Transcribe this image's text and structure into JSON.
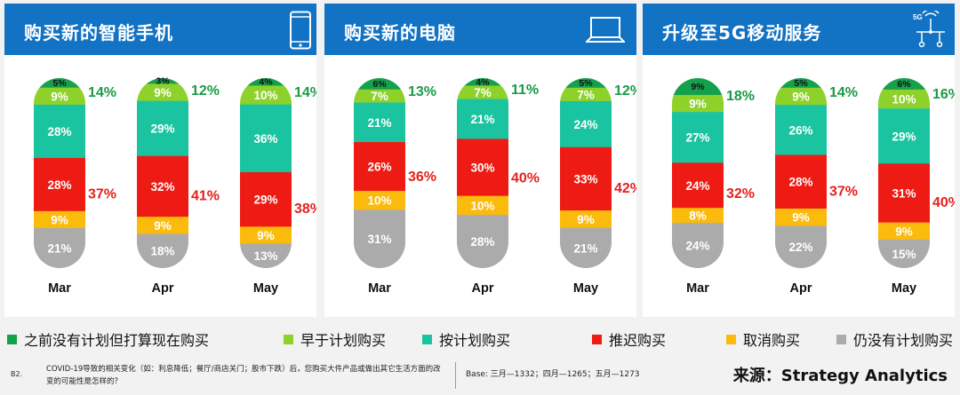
{
  "colors": {
    "header": "#1272c3",
    "no_plan_but_intend": "#15a14b",
    "earlier_than_planned": "#8ed12a",
    "as_planned": "#1bc4a0",
    "postponed": "#ee1b14",
    "cancelled": "#fbbb0d",
    "still_no_plan": "#ababab",
    "positive_label": "#1a9a45",
    "negative_label": "#e3211e"
  },
  "legend": [
    {
      "key": "no_plan_but_intend",
      "label": "之前没有计划但打算现在购买"
    },
    {
      "key": "earlier_than_planned",
      "label": "早于计划购买"
    },
    {
      "key": "as_planned",
      "label": "按计划购买"
    },
    {
      "key": "postponed",
      "label": "推迟购买"
    },
    {
      "key": "cancelled",
      "label": "取消购买"
    },
    {
      "key": "still_no_plan",
      "label": "仍没有计划购买"
    }
  ],
  "chart_data": [
    {
      "type": "bar",
      "stacked": true,
      "title": "购买新的智能手机",
      "icon": "smartphone-icon",
      "categories": [
        "Mar",
        "Apr",
        "May"
      ],
      "series": [
        {
          "name": "之前没有计划但打算现在购买",
          "key": "no_plan_but_intend",
          "values": [
            5,
            3,
            4
          ]
        },
        {
          "name": "早于计划购买",
          "key": "earlier_than_planned",
          "values": [
            9,
            9,
            10
          ]
        },
        {
          "name": "按计划购买",
          "key": "as_planned",
          "values": [
            28,
            29,
            36
          ]
        },
        {
          "name": "推迟购买",
          "key": "postponed",
          "values": [
            28,
            32,
            29
          ]
        },
        {
          "name": "取消购买",
          "key": "cancelled",
          "values": [
            9,
            9,
            9
          ]
        },
        {
          "name": "仍没有计划购买",
          "key": "still_no_plan",
          "values": [
            21,
            18,
            13
          ]
        }
      ],
      "positive_totals": [
        "14%",
        "12%",
        "14%"
      ],
      "negative_totals": [
        "37%",
        "41%",
        "38%"
      ]
    },
    {
      "type": "bar",
      "stacked": true,
      "title": "购买新的电脑",
      "icon": "laptop-icon",
      "categories": [
        "Mar",
        "Apr",
        "May"
      ],
      "series": [
        {
          "name": "之前没有计划但打算现在购买",
          "key": "no_plan_but_intend",
          "values": [
            6,
            4,
            5
          ]
        },
        {
          "name": "早于计划购买",
          "key": "earlier_than_planned",
          "values": [
            7,
            7,
            7
          ]
        },
        {
          "name": "按计划购买",
          "key": "as_planned",
          "values": [
            21,
            21,
            24
          ]
        },
        {
          "name": "推迟购买",
          "key": "postponed",
          "values": [
            26,
            30,
            33
          ]
        },
        {
          "name": "取消购买",
          "key": "cancelled",
          "values": [
            10,
            10,
            9
          ]
        },
        {
          "name": "仍没有计划购买",
          "key": "still_no_plan",
          "values": [
            31,
            28,
            21
          ]
        }
      ],
      "positive_totals": [
        "13%",
        "11%",
        "12%"
      ],
      "negative_totals": [
        "36%",
        "40%",
        "42%"
      ]
    },
    {
      "type": "bar",
      "stacked": true,
      "title": "升级至5G移动服务",
      "icon": "5g-antenna-icon",
      "icon_text": "5G",
      "categories": [
        "Mar",
        "Apr",
        "May"
      ],
      "series": [
        {
          "name": "之前没有计划但打算现在购买",
          "key": "no_plan_but_intend",
          "values": [
            9,
            5,
            6
          ]
        },
        {
          "name": "早于计划购买",
          "key": "earlier_than_planned",
          "values": [
            9,
            9,
            10
          ]
        },
        {
          "name": "按计划购买",
          "key": "as_planned",
          "values": [
            27,
            26,
            29
          ]
        },
        {
          "name": "推迟购买",
          "key": "postponed",
          "values": [
            24,
            28,
            31
          ]
        },
        {
          "name": "取消购买",
          "key": "cancelled",
          "values": [
            8,
            9,
            9
          ]
        },
        {
          "name": "仍没有计划购买",
          "key": "still_no_plan",
          "values": [
            24,
            22,
            15
          ]
        }
      ],
      "positive_totals": [
        "18%",
        "14%",
        "16%"
      ],
      "negative_totals": [
        "32%",
        "37%",
        "40%"
      ]
    }
  ],
  "footnote": {
    "code": "B2.",
    "question": "COVID-19导致的相关变化（如：利息降低；餐厅/商店关门；股市下跌）后，您购买大件产品或做出其它生活方面的改变的可能性是怎样的？",
    "base": "Base:    三月—1332；四月—1265；五月—1273"
  },
  "source": "来源：Strategy Analytics"
}
